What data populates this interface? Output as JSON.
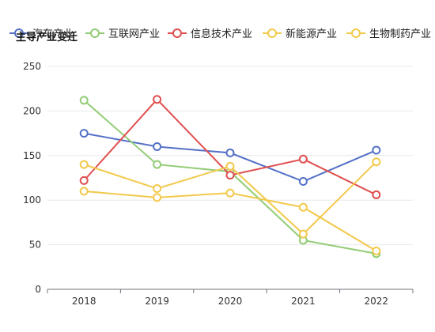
{
  "chart_data": {
    "type": "line",
    "title": "主导产业变迁",
    "categories": [
      "2018",
      "2019",
      "2020",
      "2021",
      "2022"
    ],
    "ylim": [
      0,
      250
    ],
    "yticks": [
      0,
      50,
      100,
      150,
      200,
      250
    ],
    "grid": true,
    "legend_position": "top",
    "series": [
      {
        "name": "汽车产业",
        "color": "#5470c6",
        "values": [
          175,
          160,
          153,
          121,
          156
        ]
      },
      {
        "name": "互联网产业",
        "color": "#91cc75",
        "values": [
          212,
          140,
          132,
          55,
          40
        ]
      },
      {
        "name": "信息技术产业",
        "color": "#e04f4f",
        "values": [
          122,
          213,
          128,
          146,
          106
        ]
      },
      {
        "name": "新能源产业",
        "color": "#f2c94c",
        "values": [
          110,
          103,
          108,
          92,
          43
        ]
      },
      {
        "name": "生物制药产业",
        "color": "#f2c94c",
        "values": [
          140,
          113,
          138,
          62,
          143
        ]
      }
    ]
  }
}
